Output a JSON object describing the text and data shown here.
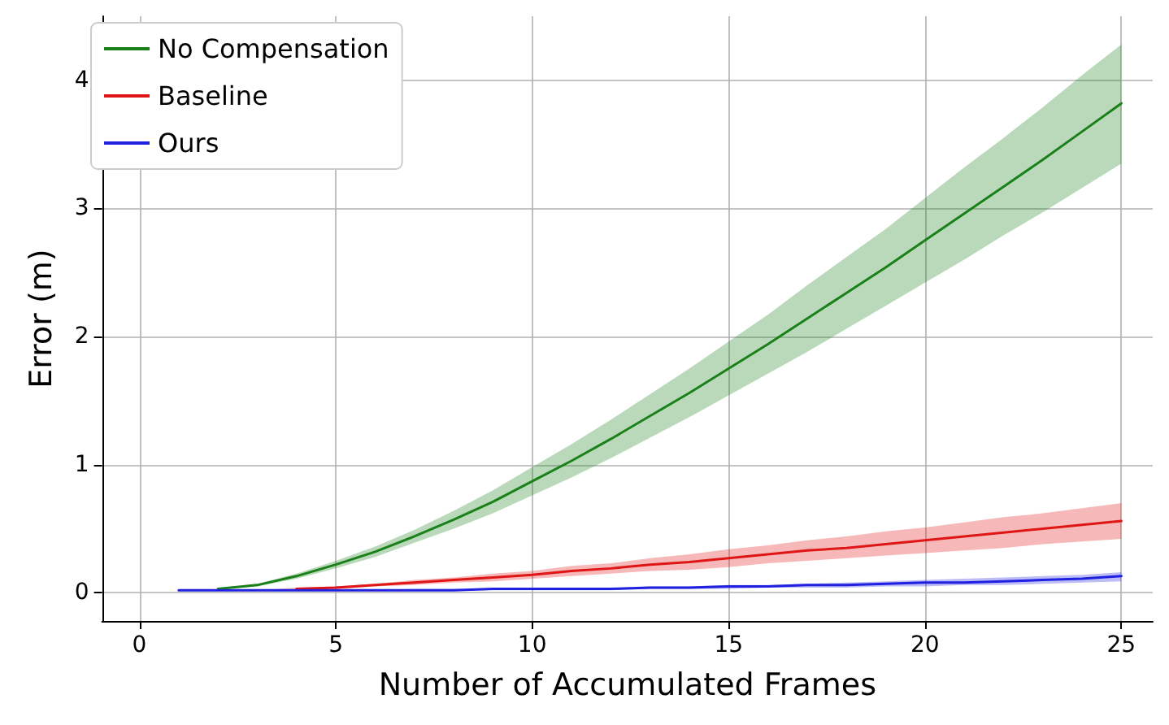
{
  "chart_data": {
    "type": "line",
    "xlabel": "Number of Accumulated Frames",
    "ylabel": "Error (m)",
    "x": [
      1,
      2,
      3,
      4,
      5,
      6,
      7,
      8,
      9,
      10,
      11,
      12,
      13,
      14,
      15,
      16,
      17,
      18,
      19,
      20,
      21,
      22,
      23,
      24,
      25
    ],
    "series": [
      {
        "name": "No Compensation",
        "color": "#1a801a",
        "values": [
          null,
          0.03,
          0.06,
          0.13,
          0.22,
          0.32,
          0.44,
          0.57,
          0.71,
          0.87,
          1.03,
          1.2,
          1.38,
          1.56,
          1.75,
          1.94,
          2.14,
          2.34,
          2.54,
          2.75,
          2.96,
          3.17,
          3.38,
          3.6,
          3.82
        ],
        "lower": [
          0.02,
          0.03,
          0.05,
          0.11,
          0.19,
          0.28,
          0.39,
          0.5,
          0.62,
          0.76,
          0.9,
          1.05,
          1.21,
          1.37,
          1.54,
          1.71,
          1.88,
          2.06,
          2.24,
          2.42,
          2.6,
          2.79,
          2.97,
          3.16,
          3.35
        ],
        "upper": [
          0.02,
          0.03,
          0.07,
          0.15,
          0.25,
          0.36,
          0.49,
          0.64,
          0.8,
          0.98,
          1.16,
          1.35,
          1.55,
          1.75,
          1.96,
          2.17,
          2.4,
          2.62,
          2.84,
          3.08,
          3.32,
          3.55,
          3.79,
          4.04,
          4.28
        ]
      },
      {
        "name": "Baseline",
        "color": "#e01515",
        "values": [
          null,
          null,
          null,
          0.03,
          0.04,
          0.06,
          0.08,
          0.1,
          0.12,
          0.14,
          0.17,
          0.19,
          0.22,
          0.24,
          0.27,
          0.3,
          0.33,
          0.35,
          0.38,
          0.41,
          0.44,
          0.47,
          0.5,
          0.53,
          0.56
        ],
        "lower": [
          0.02,
          0.02,
          0.02,
          0.02,
          0.03,
          0.05,
          0.06,
          0.08,
          0.09,
          0.11,
          0.13,
          0.15,
          0.17,
          0.18,
          0.2,
          0.23,
          0.25,
          0.27,
          0.29,
          0.31,
          0.33,
          0.35,
          0.38,
          0.4,
          0.42
        ],
        "upper": [
          0.02,
          0.02,
          0.02,
          0.04,
          0.05,
          0.07,
          0.1,
          0.12,
          0.15,
          0.17,
          0.21,
          0.23,
          0.27,
          0.3,
          0.34,
          0.37,
          0.41,
          0.44,
          0.48,
          0.51,
          0.55,
          0.59,
          0.62,
          0.66,
          0.7
        ]
      },
      {
        "name": "Ours",
        "color": "#2020e0",
        "values": [
          0.02,
          0.02,
          0.02,
          0.02,
          0.02,
          0.02,
          0.02,
          0.02,
          0.03,
          0.03,
          0.03,
          0.03,
          0.04,
          0.04,
          0.05,
          0.05,
          0.06,
          0.06,
          0.07,
          0.08,
          0.08,
          0.09,
          0.1,
          0.11,
          0.13
        ],
        "lower": [
          0.02,
          0.02,
          0.02,
          0.02,
          0.02,
          0.02,
          0.02,
          0.02,
          0.02,
          0.02,
          0.02,
          0.02,
          0.03,
          0.03,
          0.03,
          0.04,
          0.04,
          0.04,
          0.05,
          0.05,
          0.06,
          0.06,
          0.07,
          0.08,
          0.09
        ],
        "upper": [
          0.02,
          0.02,
          0.02,
          0.02,
          0.02,
          0.02,
          0.03,
          0.03,
          0.03,
          0.04,
          0.04,
          0.04,
          0.05,
          0.05,
          0.06,
          0.06,
          0.07,
          0.08,
          0.09,
          0.1,
          0.11,
          0.12,
          0.13,
          0.14,
          0.16
        ]
      }
    ],
    "xlim": [
      -0.95,
      25.8
    ],
    "ylim": [
      -0.22,
      4.5
    ],
    "xticks": [
      0,
      5,
      10,
      15,
      20,
      25
    ],
    "yticks": [
      0,
      1,
      2,
      3,
      4
    ],
    "grid": true,
    "legend": "top left",
    "marker": "none",
    "line_style": "solid"
  }
}
